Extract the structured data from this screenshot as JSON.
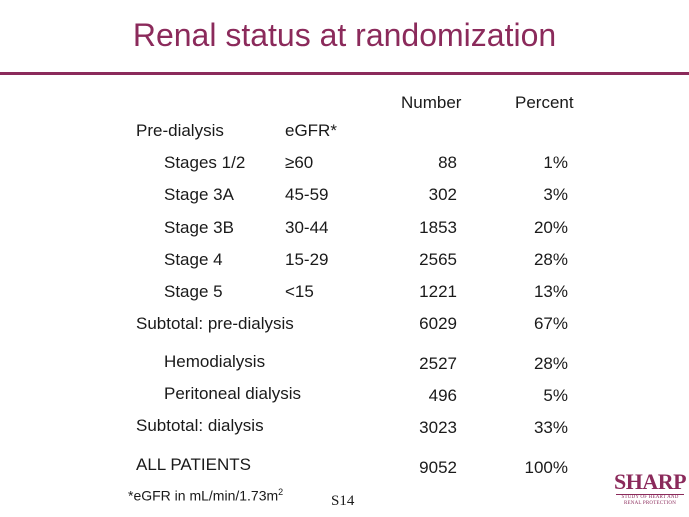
{
  "title": "Renal status at randomization",
  "headers": {
    "number": "Number",
    "percent": "Percent"
  },
  "pre_dialysis": {
    "label": "Pre-dialysis",
    "egfr_label": "eGFR*"
  },
  "stages": [
    {
      "stage": "Stages 1/2",
      "egfr": "≥60",
      "number": "88",
      "percent": "1%"
    },
    {
      "stage": "Stage 3A",
      "egfr": "45-59",
      "number": "302",
      "percent": "3%"
    },
    {
      "stage": "Stage 3B",
      "egfr": "30-44",
      "number": "1853",
      "percent": "20%"
    },
    {
      "stage": "Stage 4",
      "egfr": "15-29",
      "number": "2565",
      "percent": "28%"
    },
    {
      "stage": "Stage 5",
      "egfr": "<15",
      "number": "1221",
      "percent": "13%"
    }
  ],
  "subtotal_pre": {
    "label": "Subtotal: pre-dialysis",
    "number": "6029",
    "percent": "67%"
  },
  "dialysis": [
    {
      "label": "Hemodialysis",
      "number": "2527",
      "percent": "28%"
    },
    {
      "label": "Peritoneal dialysis",
      "number": "496",
      "percent": "5%"
    }
  ],
  "subtotal_dialysis": {
    "label": "Subtotal: dialysis",
    "number": "3023",
    "percent": "33%"
  },
  "all_patients": {
    "label": "ALL PATIENTS",
    "number": "9052",
    "percent": "100%"
  },
  "footnote": {
    "text": "*eGFR in mL/min/1.73m",
    "sup": "2"
  },
  "slide_number": "S14",
  "logo": {
    "word": "SHARP",
    "tagline_1": "STUDY OF HEART AND",
    "tagline_2": "RENAL PROTECTION"
  },
  "colors": {
    "accent": "#8b2a5b",
    "text": "#1a1a1a"
  }
}
